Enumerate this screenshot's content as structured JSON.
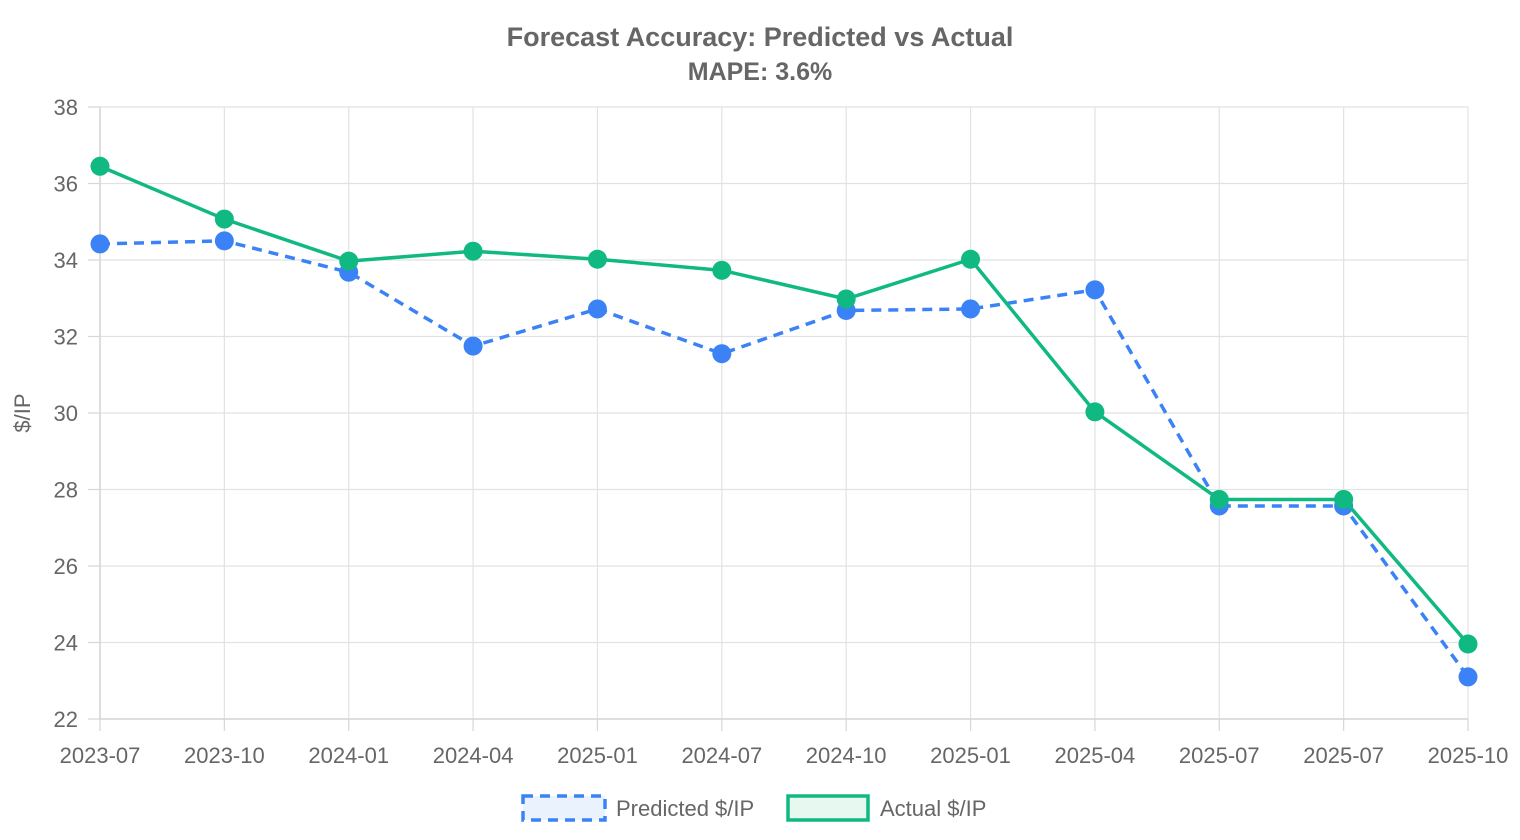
{
  "chart_data": {
    "type": "line",
    "title": "Forecast Accuracy: Predicted vs Actual",
    "subtitle": "MAPE: 3.6%",
    "ylabel": "$/IP",
    "xlabel": "",
    "categories": [
      "2023-07",
      "2023-10",
      "2024-01",
      "2024-04",
      "2025-01",
      "2024-07",
      "2024-10",
      "2025-01",
      "2025-04",
      "2025-07",
      "2025-07",
      "2025-10"
    ],
    "series": [
      {
        "name": "Predicted $/IP",
        "style": "dashed",
        "color": "#3b82f6",
        "fill": "#eaf2fe",
        "values": [
          34.42,
          34.5,
          33.68,
          31.75,
          32.72,
          31.55,
          32.68,
          32.72,
          33.22,
          27.57,
          27.57,
          23.1
        ]
      },
      {
        "name": "Actual $/IP",
        "style": "solid",
        "color": "#10b981",
        "fill": "#e7f8f1",
        "values": [
          36.45,
          35.07,
          33.97,
          34.23,
          34.02,
          33.73,
          32.98,
          34.02,
          30.03,
          27.74,
          27.74,
          23.96
        ]
      }
    ],
    "ylim": [
      22,
      38
    ],
    "yticks": [
      22,
      24,
      26,
      28,
      30,
      32,
      34,
      36,
      38
    ],
    "grid": true,
    "legend_position": "bottom"
  }
}
